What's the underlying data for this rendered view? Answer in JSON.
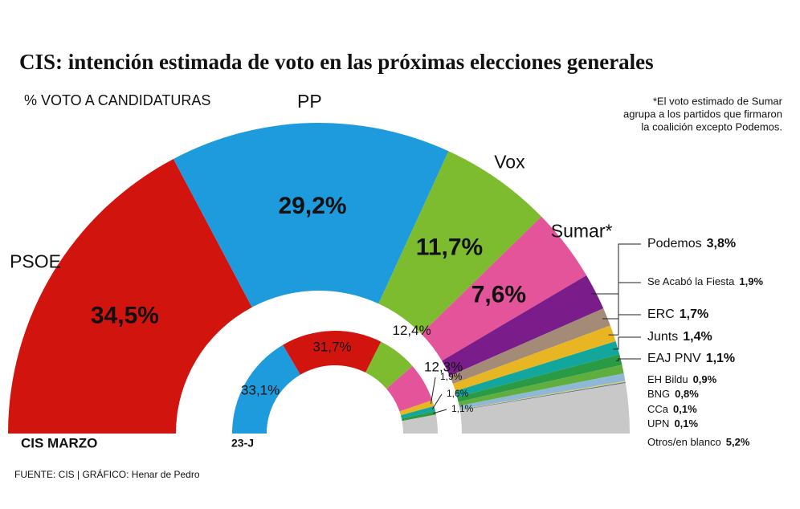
{
  "header": {
    "title": "CIS: intención estimada de voto en las próximas elecciones generales",
    "subtitle": "% VOTO A CANDIDATURAS",
    "note": [
      "*El voto estimado de Sumar",
      "agrupa a los partidos que firmaron",
      "la coalición excepto Podemos."
    ]
  },
  "footer": {
    "source": "FUENTE: CIS   |   GRÁFICO: Henar de Pedro"
  },
  "chart_data": [
    {
      "type": "semicircle",
      "title": "CIS MARZO",
      "categories": [
        "PSOE",
        "PP",
        "Vox",
        "Sumar*",
        "Podemos",
        "Se Acabó la Fiesta",
        "ERC",
        "Junts",
        "EAJ PNV",
        "EH Bildu",
        "BNG",
        "CCa",
        "UPN",
        "Otros/en blanco"
      ],
      "values": [
        34.5,
        29.2,
        11.7,
        7.6,
        3.8,
        1.9,
        1.7,
        1.4,
        1.1,
        0.9,
        0.8,
        0.1,
        0.1,
        5.2
      ],
      "value_labels": [
        "34,5%",
        "29,2%",
        "11,7%",
        "7,6%",
        "3,8%",
        "1,9%",
        "1,7%",
        "1,4%",
        "1,1%",
        "0,9%",
        "0,8%",
        "0,1%",
        "0,1%",
        "5,2%"
      ],
      "colors": [
        "#d2140f",
        "#1e9bdc",
        "#7dbb2f",
        "#e3549a",
        "#7a1d8a",
        "#a38b78",
        "#e8b623",
        "#12a69c",
        "#2a9a44",
        "#5fae3e",
        "#8fb8d6",
        "#f2d23a",
        "#4a6bb0",
        "#c8c8c8"
      ]
    },
    {
      "type": "semicircle",
      "title": "23-J",
      "values": [
        33.1,
        31.7,
        12.4,
        12.3,
        1.9,
        1.6,
        1.1,
        5.9
      ],
      "value_labels": [
        "33,1%",
        "31,7%",
        "12,4%",
        "12,3%",
        "1,9%",
        "1,6%",
        "1,1%",
        null
      ],
      "colors": [
        "#1e9bdc",
        "#d2140f",
        "#7dbb2f",
        "#e3549a",
        "#e8b623",
        "#12a69c",
        "#2a9a44",
        "#c8c8c8"
      ]
    }
  ]
}
